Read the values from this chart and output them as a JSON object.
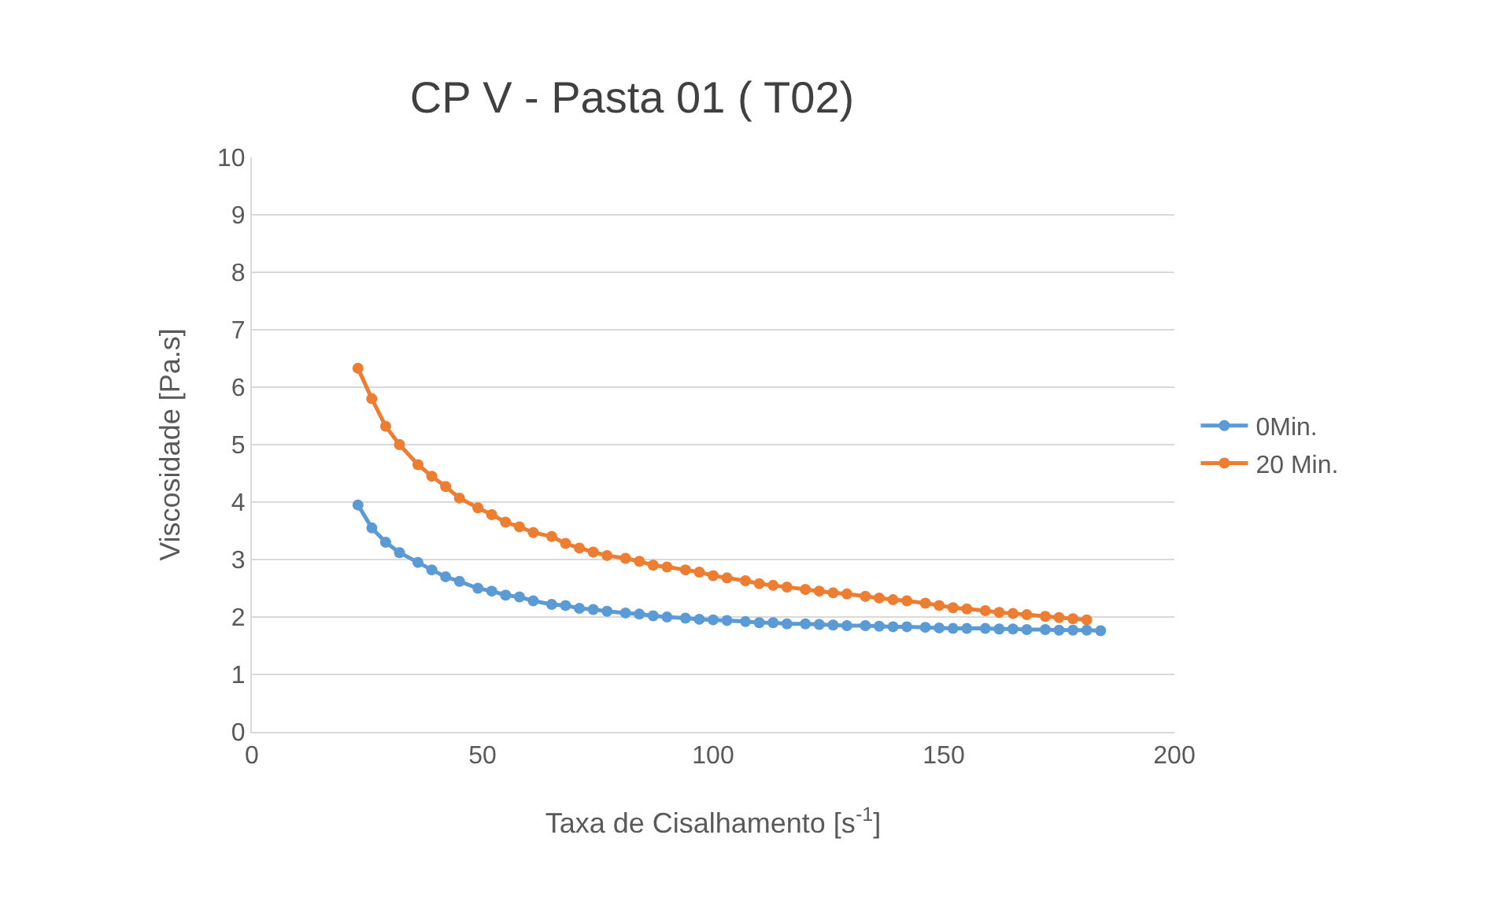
{
  "chart_data": {
    "type": "line",
    "title": "CP V - Pasta 01 ( T02)",
    "xlabel": "Taxa de Cisalhamento [s$^{-1}$]",
    "ylabel": "Viscosidade [Pa.s]",
    "xlim": [
      0,
      200
    ],
    "xticks": [
      0,
      50,
      100,
      150,
      200
    ],
    "ylim": [
      0,
      10
    ],
    "yticks": [
      0,
      1,
      2,
      3,
      4,
      5,
      6,
      7,
      8,
      9,
      10
    ],
    "grid": "y",
    "legend": "right",
    "marker": "circle",
    "line_style": "solid",
    "series": [
      {
        "name": "0Min.",
        "color": "#5b9bd5",
        "x": [
          23,
          26,
          29,
          32,
          36,
          39,
          42,
          45,
          49,
          52,
          55,
          58,
          61,
          65,
          68,
          71,
          74,
          77,
          81,
          84,
          87,
          90,
          94,
          97,
          100,
          103,
          107,
          110,
          113,
          116,
          120,
          123,
          126,
          129,
          133,
          136,
          139,
          142,
          146,
          149,
          152,
          155,
          159,
          162,
          165,
          168,
          172,
          175,
          178,
          181,
          184
        ],
        "values": [
          3.95,
          3.55,
          3.3,
          3.12,
          2.95,
          2.82,
          2.7,
          2.62,
          2.5,
          2.45,
          2.38,
          2.35,
          2.28,
          2.22,
          2.2,
          2.15,
          2.13,
          2.1,
          2.07,
          2.05,
          2.02,
          2.0,
          1.98,
          1.96,
          1.95,
          1.94,
          1.92,
          1.9,
          1.9,
          1.88,
          1.88,
          1.87,
          1.86,
          1.85,
          1.85,
          1.84,
          1.83,
          1.83,
          1.82,
          1.81,
          1.8,
          1.8,
          1.8,
          1.79,
          1.79,
          1.78,
          1.78,
          1.77,
          1.77,
          1.77,
          1.76
        ]
      },
      {
        "name": "20 Min.",
        "color": "#ed7d31",
        "x": [
          23,
          26,
          29,
          32,
          36,
          39,
          42,
          45,
          49,
          52,
          55,
          58,
          61,
          65,
          68,
          71,
          74,
          77,
          81,
          84,
          87,
          90,
          94,
          97,
          100,
          103,
          107,
          110,
          113,
          116,
          120,
          123,
          126,
          129,
          133,
          136,
          139,
          142,
          146,
          149,
          152,
          155,
          159,
          162,
          165,
          168,
          172,
          175,
          178,
          181
        ],
        "values": [
          6.33,
          5.8,
          5.32,
          5.0,
          4.65,
          4.45,
          4.27,
          4.07,
          3.9,
          3.78,
          3.65,
          3.57,
          3.47,
          3.4,
          3.28,
          3.2,
          3.13,
          3.07,
          3.02,
          2.97,
          2.9,
          2.87,
          2.82,
          2.78,
          2.72,
          2.68,
          2.63,
          2.58,
          2.55,
          2.52,
          2.48,
          2.45,
          2.42,
          2.4,
          2.36,
          2.33,
          2.3,
          2.28,
          2.24,
          2.2,
          2.16,
          2.14,
          2.11,
          2.08,
          2.06,
          2.04,
          2.01,
          1.99,
          1.97,
          1.95
        ]
      }
    ]
  }
}
